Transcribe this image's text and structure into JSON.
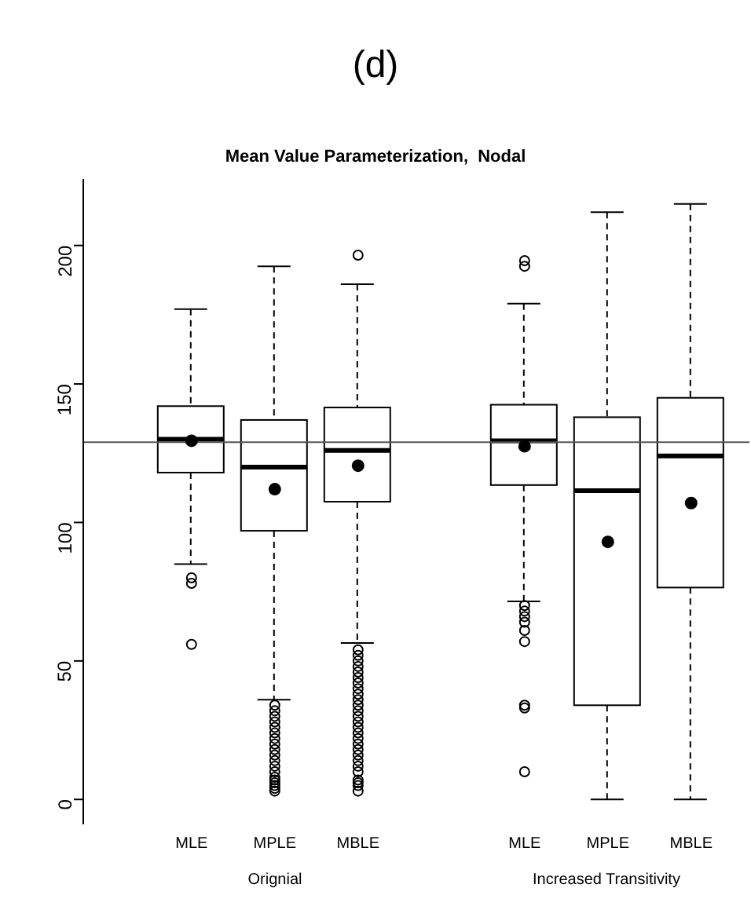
{
  "chart_data": {
    "type": "box",
    "title": "(d)",
    "subtitle": "Mean Value Parameterization,  Nodal",
    "categories": [
      "MLE",
      "MPLE",
      "MBLE",
      null,
      "MLE",
      "MPLE",
      "MBLE"
    ],
    "boxes": [
      {
        "low": 85,
        "q1": 118,
        "median": 130,
        "q3": 142,
        "high": 177,
        "mean": 129.5,
        "outliers": [
          80,
          78,
          56
        ]
      },
      {
        "low": 36,
        "q1": 97,
        "median": 120,
        "q3": 137,
        "high": 192.5,
        "mean": 112,
        "outliers": [
          34,
          32,
          30,
          28,
          26,
          24,
          22,
          20,
          18,
          16,
          14,
          12,
          10,
          8,
          7,
          6,
          5,
          4,
          3
        ]
      },
      {
        "low": 56.5,
        "q1": 107.5,
        "median": 126,
        "q3": 141.5,
        "high": 186,
        "mean": 120.5,
        "outliers": [
          196.5,
          54,
          52,
          50,
          48,
          46,
          44,
          42,
          40,
          38,
          36,
          34,
          32,
          30,
          28,
          26,
          24,
          22,
          20,
          18,
          16,
          14,
          12,
          10,
          7,
          6,
          5,
          3
        ]
      },
      null,
      {
        "low": 71.5,
        "q1": 113.5,
        "median": 129.5,
        "q3": 142.5,
        "high": 179,
        "mean": 127.5,
        "outliers": [
          194.5,
          192.5,
          70,
          68,
          66,
          64,
          61,
          57,
          34,
          33,
          10
        ]
      },
      {
        "low": 0,
        "q1": 34,
        "median": 111.5,
        "q3": 138,
        "high": 212,
        "mean": 93
      },
      {
        "low": 0,
        "q1": 76.5,
        "median": 124,
        "q3": 145,
        "high": 215,
        "mean": 107
      }
    ],
    "ylim": [
      -9,
      224
    ],
    "yticks": [
      0,
      50,
      100,
      150,
      200
    ],
    "ref_lines": [
      {
        "axis": "y",
        "value": 129
      }
    ],
    "annotations": [
      "Orignial",
      "Increased Transitivity"
    ]
  }
}
